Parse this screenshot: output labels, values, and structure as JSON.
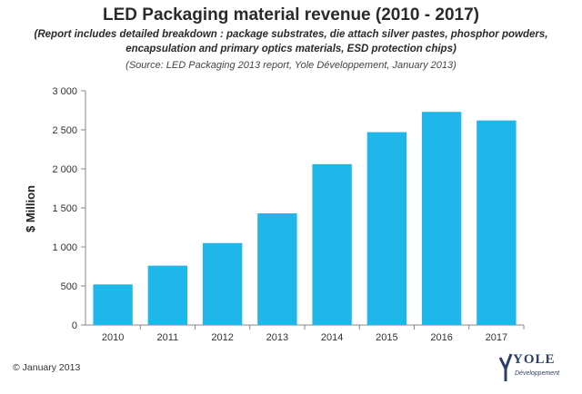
{
  "chart_data": {
    "type": "bar",
    "title": "LED Packaging material revenue (2010 - 2017)",
    "subtitle_lines": [
      "(Report includes detailed breakdown : package substrates, die attach silver pastes, phosphor powders,",
      "encapsulation and primary optics materials, ESD protection chips)"
    ],
    "source": "(Source: LED Packaging 2013 report, Yole Développement, January 2013)",
    "categories": [
      "2010",
      "2011",
      "2012",
      "2013",
      "2014",
      "2015",
      "2016",
      "2017"
    ],
    "values": [
      520,
      760,
      1050,
      1430,
      2060,
      2470,
      2730,
      2620
    ],
    "xlabel": "",
    "ylabel": "$ Million",
    "ylim": [
      0,
      3000
    ],
    "yticks": [
      0,
      500,
      1000,
      1500,
      2000,
      2500,
      3000
    ],
    "ytick_labels": [
      "0",
      "500",
      "1 000",
      "1 500",
      "2 000",
      "2 500",
      "3 000"
    ],
    "bar_color": "#1fb6ea",
    "grid": false
  },
  "footer": {
    "copyright": "© January 2013",
    "logo_text": "YOLE",
    "logo_sub": "Développement"
  }
}
